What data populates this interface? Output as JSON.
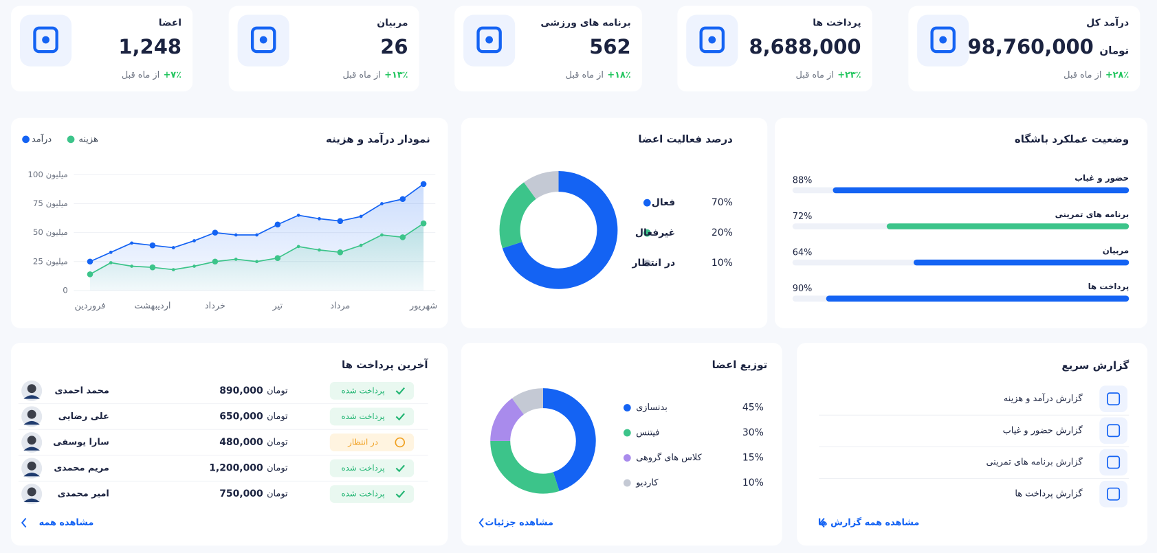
{
  "stat_cards": [
    {
      "title": "درآمد کل",
      "value": "98,760,000",
      "unit": "تومان",
      "change": "+۲۸٪",
      "change_note": "از ماه قبل"
    },
    {
      "title": "پرداخت ها",
      "value": "8,688,000",
      "change": "+۲۳٪",
      "change_note": "از ماه قبل"
    },
    {
      "title": "برنامه های ورزشی",
      "value": "562",
      "change": "+۱۸٪",
      "change_note": "از ماه قبل"
    },
    {
      "title": "مربیان",
      "value": "26",
      "change": "+۱۳٪",
      "change_note": "از ماه قبل"
    },
    {
      "title": "اعضا",
      "value": "1,248",
      "change": "+۷٪",
      "change_note": "از ماه قبل"
    }
  ],
  "chart_data": [
    {
      "type": "line",
      "title": "نمودار درآمد و هزینه",
      "categories": [
        "فروردین",
        null,
        null,
        "اردیبهشت",
        null,
        null,
        "خرداد",
        null,
        null,
        "تیر",
        null,
        null,
        "مرداد",
        null,
        null,
        null,
        "شهریور"
      ],
      "series": [
        {
          "name": "درآمد",
          "color": "#1463f3",
          "values": [
            25,
            33,
            41,
            39,
            37,
            43,
            50,
            48,
            48,
            57,
            65,
            62,
            60,
            64,
            75,
            79,
            92
          ]
        },
        {
          "name": "هزینه",
          "color": "#3cc48a",
          "values": [
            14,
            24,
            21,
            20,
            18,
            21,
            25,
            27,
            25,
            28,
            38,
            35,
            33,
            39,
            48,
            46,
            58
          ]
        }
      ],
      "ylim": [
        0,
        100
      ],
      "yticks": [
        0,
        {
          "value": 25,
          "label": "25 میلیون"
        },
        {
          "value": 50,
          "label": "50 میلیون"
        },
        {
          "value": 75,
          "label": "75 میلیون"
        },
        {
          "value": 100,
          "label": "100 میلیون"
        }
      ],
      "grid": true
    },
    {
      "type": "donut",
      "title": "درصد فعالیت اعضا",
      "categories": [
        "فعال",
        "غیرفعال",
        "در انتظار"
      ],
      "values": [
        70,
        20,
        10
      ],
      "value_labels": [
        "70%",
        "20%",
        "10%"
      ],
      "colors": [
        "#1463f3",
        "#3cc48a",
        "#c4c9d4"
      ]
    },
    {
      "type": "progress",
      "title": "وضعیت عملکرد باشگاه",
      "categories": [
        "حضور و غیاب",
        "برنامه های تمرینی",
        "مربیان",
        "پرداخت ها"
      ],
      "values": [
        88,
        72,
        64,
        90
      ],
      "value_labels": [
        "88%",
        "72%",
        "64%",
        "90%"
      ],
      "colors": [
        "#1463f3",
        "#3cc48a",
        "#1463f3",
        "#1463f3"
      ],
      "xlim": [
        0,
        100
      ]
    },
    {
      "type": "donut",
      "title": "توزیع اعضا",
      "categories": [
        "بدنسازی",
        "فیتنس",
        "کلاس های گروهی",
        "کاردیو"
      ],
      "values": [
        45,
        30,
        15,
        10
      ],
      "value_labels": [
        "45%",
        "30%",
        "15%",
        "10%"
      ],
      "colors": [
        "#1463f3",
        "#3cc48a",
        "#a98bec",
        "#c4c9d4"
      ],
      "link": "مشاهده جزئیات"
    }
  ],
  "payments": {
    "title": "آخرین پرداخت ها",
    "rows": [
      {
        "name": "محمد احمدی",
        "amount": "890,000",
        "unit": "تومان",
        "status": "پرداخت شده",
        "state": "paid"
      },
      {
        "name": "علی رضایی",
        "amount": "650,000",
        "unit": "تومان",
        "status": "پرداخت شده",
        "state": "paid"
      },
      {
        "name": "سارا یوسفی",
        "amount": "480,000",
        "unit": "تومان",
        "status": "در انتظار",
        "state": "pending"
      },
      {
        "name": "مریم محمدی",
        "amount": "1,200,000",
        "unit": "تومان",
        "status": "پرداخت شده",
        "state": "paid"
      },
      {
        "name": "امیر محمدی",
        "amount": "750,000",
        "unit": "تومان",
        "status": "پرداخت شده",
        "state": "paid"
      }
    ],
    "link": "مشاهده همه"
  },
  "quick_report": {
    "title": "گزارش سریع",
    "items": [
      "گزارش درآمد و هزینه",
      "گزارش حضور و غیاب",
      "گزارش برنامه های تمرینی",
      "گزارش پرداخت ها"
    ],
    "link": "مشاهده همه گزارش ها"
  }
}
